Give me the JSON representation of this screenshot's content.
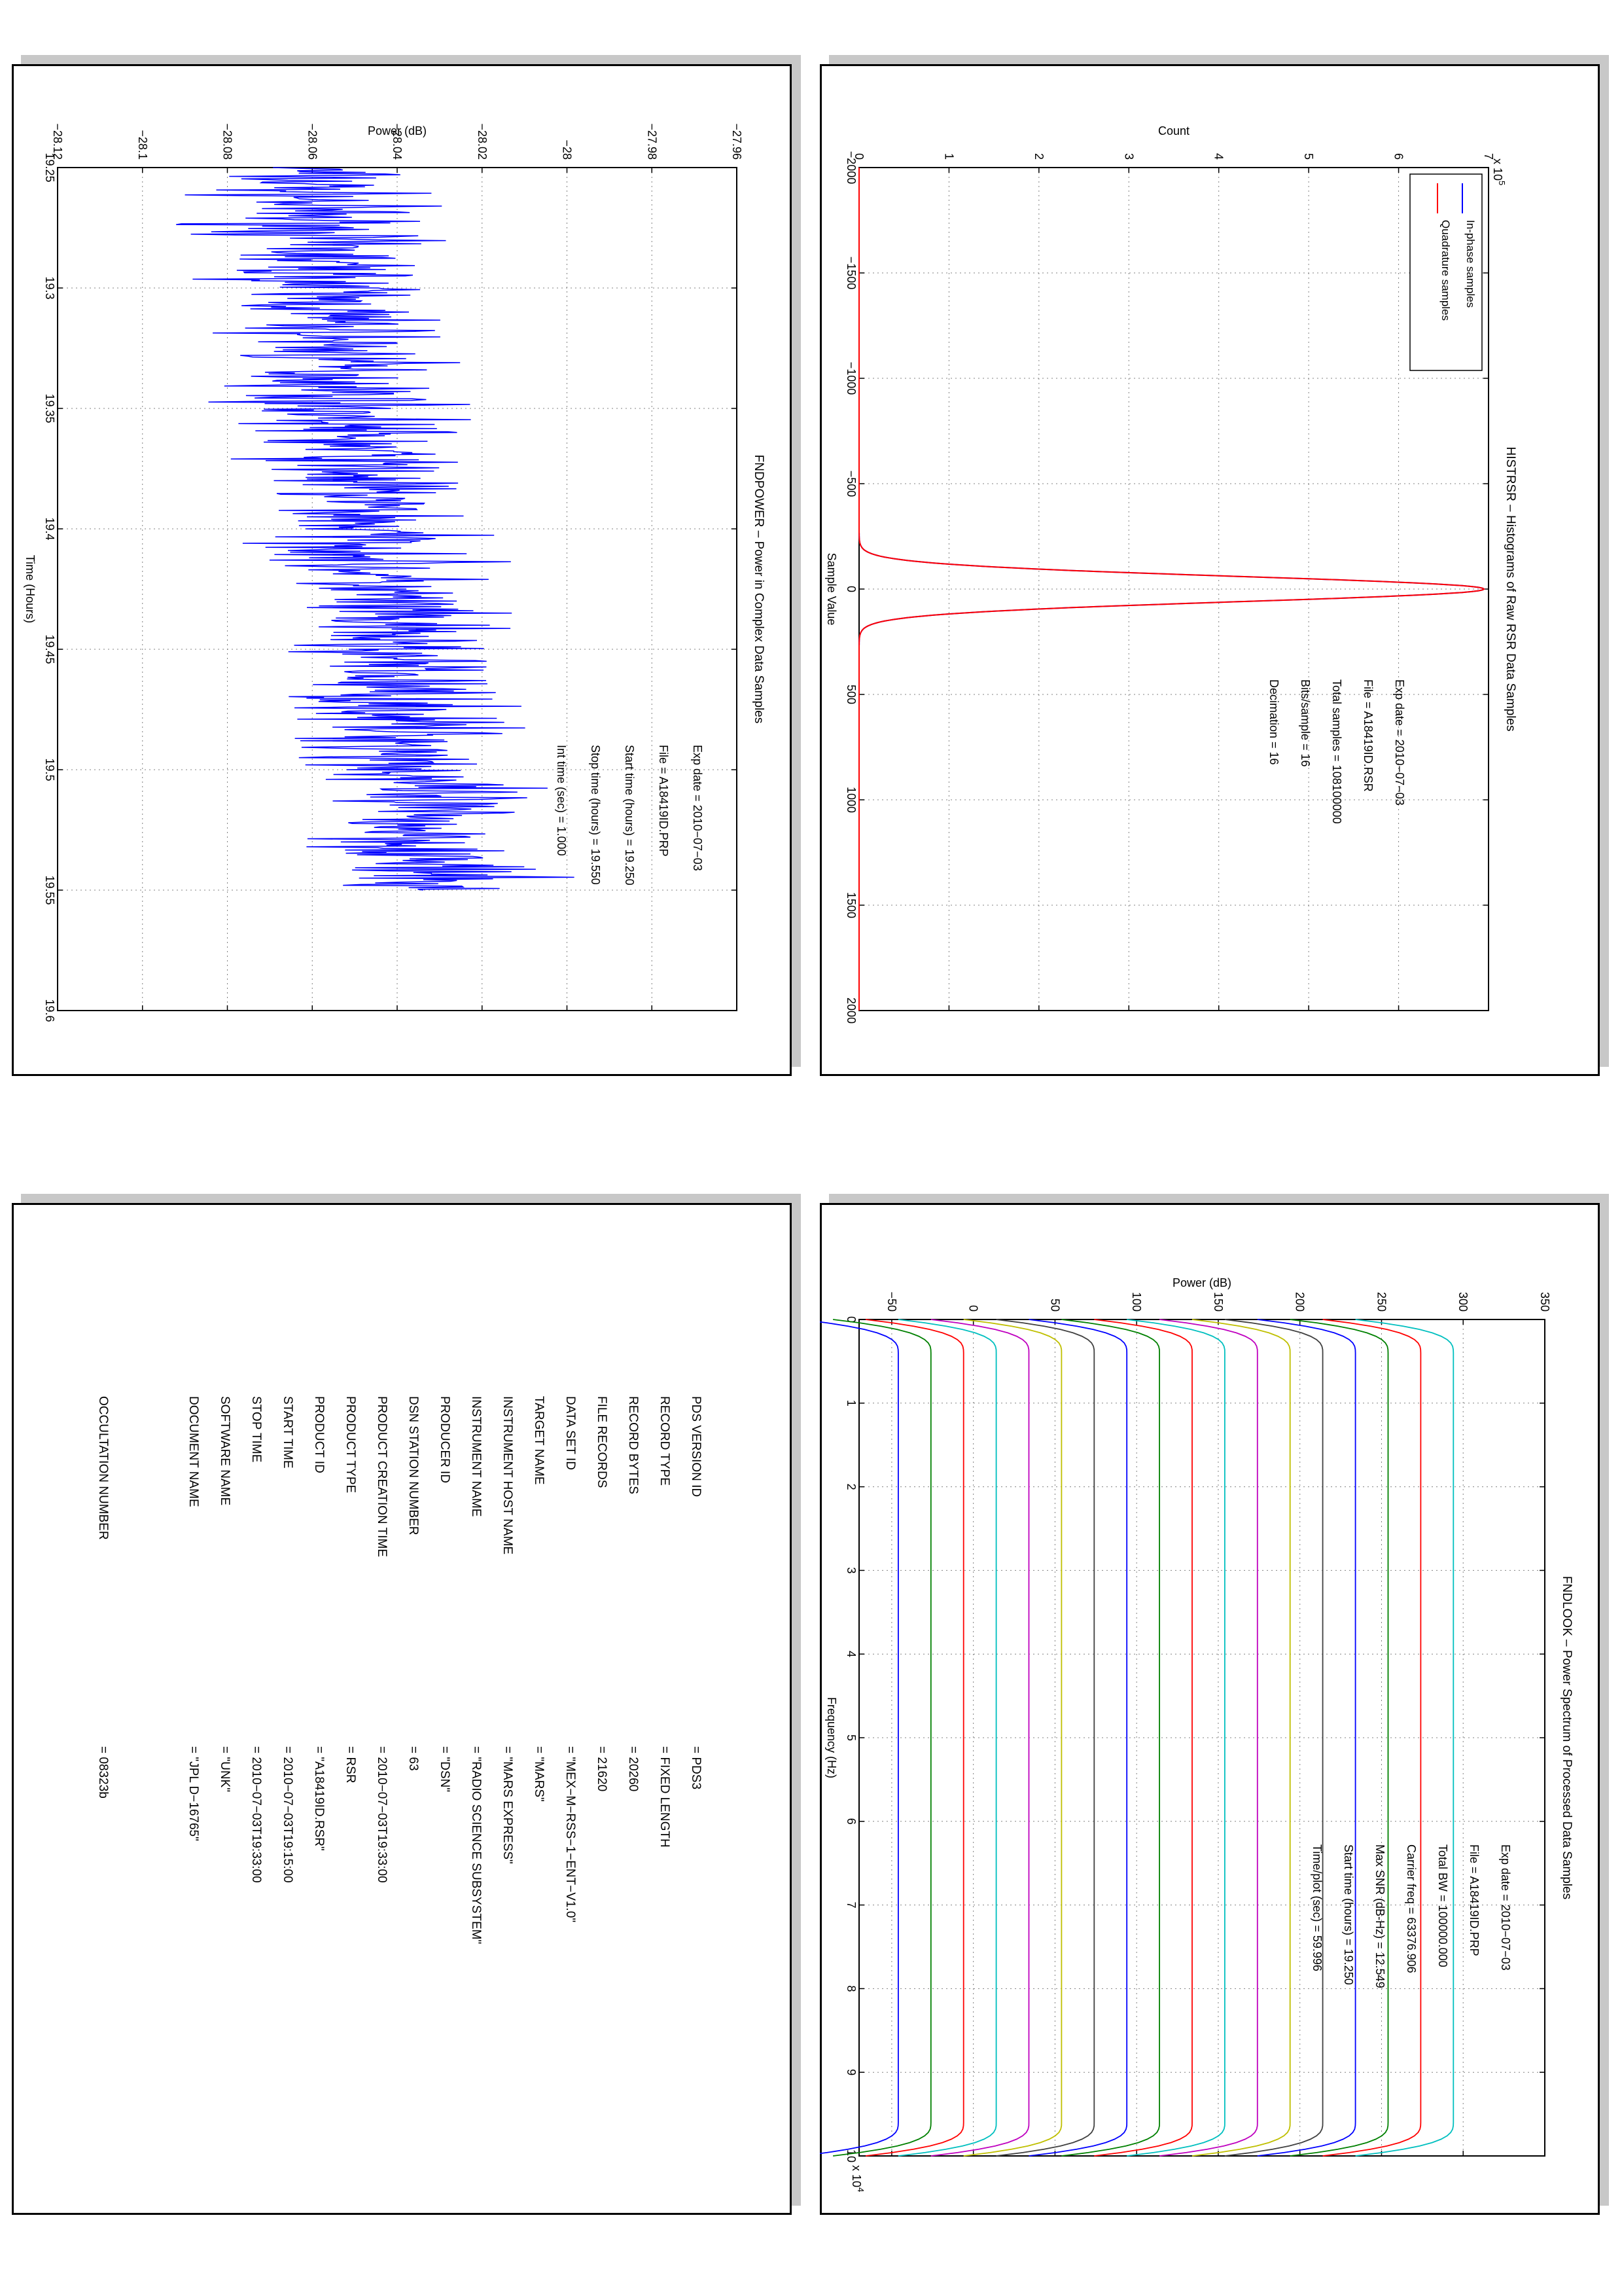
{
  "chart_data": [
    {
      "id": "histrsr",
      "type": "line",
      "title": "HISTRSR – Histograms of Raw RSR Data Samples",
      "xlabel": "Sample Value",
      "ylabel": "Count",
      "y_exponent": "x 10",
      "y_exponent_power": "5",
      "xlim": [
        -2000,
        2000
      ],
      "ylim": [
        0,
        7
      ],
      "xticks": [
        "−2000",
        "−1500",
        "−1000",
        "−500",
        "0",
        "500",
        "1000",
        "1500",
        "2000"
      ],
      "yticks": [
        "0",
        "1",
        "2",
        "3",
        "4",
        "5",
        "6",
        "7"
      ],
      "grid": true,
      "legend_position": "top-right",
      "series": [
        {
          "name": "In-phase samples",
          "color": "#0000ff",
          "peak": 6.95,
          "center": 0,
          "sigma": 60
        },
        {
          "name": "Quadrature samples",
          "color": "#ff0000",
          "peak": 6.95,
          "center": 0,
          "sigma": 60
        }
      ],
      "annotations": [
        "Exp date = 2010−07−03",
        "File = A18419ID.RSR",
        "Total samples =  108100000",
        "Bits/sample    =      16",
        "Decimation     =      16"
      ]
    },
    {
      "id": "fndpower",
      "type": "line",
      "title": "FNDPOWER – Power in Complex Data Samples",
      "xlabel": "Time (Hours)",
      "ylabel": "Power (dB)",
      "xlim": [
        19.25,
        19.6
      ],
      "ylim": [
        -28.12,
        -27.96
      ],
      "xticks": [
        "19.25",
        "19.3",
        "19.35",
        "19.4",
        "19.45",
        "19.5",
        "19.55",
        "19.6"
      ],
      "yticks": [
        "−28.12",
        "−28.1",
        "−28.08",
        "−28.06",
        "−28.04",
        "−28.02",
        "−28",
        "−27.98",
        "−27.96"
      ],
      "grid": true,
      "series": [
        {
          "color": "#0000ff",
          "x_start": 19.25,
          "x_end": 19.55,
          "y_start": -28.062,
          "y_end": -28.032,
          "noise": 0.025
        }
      ],
      "annotations": [
        "Exp date = 2010−07−03",
        "File = A18419ID.PRP",
        "Start time (hours) = 19.250",
        "Stop time (hours)  = 19.550",
        "Int time (sec) =     1.000"
      ]
    },
    {
      "id": "fndlook",
      "type": "line",
      "title": "FNDLOOK – Power Spectrum of Processed Data Samples",
      "xlabel": "Frequency (Hz)",
      "ylabel": "Power (dB)",
      "x_exponent": "x 10",
      "x_exponent_power": "4",
      "xlim": [
        0,
        100000
      ],
      "ylim": [
        -70,
        350
      ],
      "xticks": [
        "0",
        "1",
        "2",
        "3",
        "4",
        "5",
        "6",
        "7",
        "8",
        "9",
        "10"
      ],
      "yticks": [
        "−50",
        "0",
        "50",
        "100",
        "150",
        "200",
        "250",
        "300",
        "350"
      ],
      "grid": true,
      "series": [
        {
          "color": "#00bfbf",
          "level": 274
        },
        {
          "color": "#ff0000",
          "level": 254
        },
        {
          "color": "#008000",
          "level": 234
        },
        {
          "color": "#0000ff",
          "level": 214
        },
        {
          "color": "#404040",
          "level": 194
        },
        {
          "color": "#bfbf00",
          "level": 174
        },
        {
          "color": "#bf00bf",
          "level": 154
        },
        {
          "color": "#00bfbf",
          "level": 134
        },
        {
          "color": "#ff0000",
          "level": 114
        },
        {
          "color": "#008000",
          "level": 94
        },
        {
          "color": "#0000ff",
          "level": 74
        },
        {
          "color": "#404040",
          "level": 54
        },
        {
          "color": "#bfbf00",
          "level": 34
        },
        {
          "color": "#bf00bf",
          "level": 14
        },
        {
          "color": "#00bfbf",
          "level": -6
        },
        {
          "color": "#ff0000",
          "level": -26
        },
        {
          "color": "#008000",
          "level": -46
        },
        {
          "color": "#0000ff",
          "level": -66
        }
      ],
      "annotations": [
        "Exp date = 2010−07−03",
        "File = A18419ID.PRP",
        "Total BW =     100000.000",
        "Carrier freq =    63376.906",
        "Max SNR (dB-Hz) =     12.549",
        "Start time (hours) =   19.250",
        "Time/plot (sec) =     59.996"
      ]
    }
  ],
  "pds_label": [
    {
      "key": "PDS VERSION ID",
      "value": "=  PDS3"
    },
    {
      "key": "RECORD TYPE",
      "value": "=  FIXED LENGTH"
    },
    {
      "key": "RECORD BYTES",
      "value": "=  20260"
    },
    {
      "key": "FILE RECORDS",
      "value": "=  21620"
    },
    {
      "key": "DATA SET ID",
      "value": "=  \"MEX−M−RSS−1−ENT−V1.0\""
    },
    {
      "key": "TARGET NAME",
      "value": "=  \"MARS\""
    },
    {
      "key": "INSTRUMENT HOST NAME",
      "value": "=  \"MARS EXPRESS\""
    },
    {
      "key": "INSTRUMENT NAME",
      "value": "=  \"RADIO SCIENCE SUBSYSTEM\""
    },
    {
      "key": "PRODUCER ID",
      "value": "=  \"DSN\""
    },
    {
      "key": "DSN STATION NUMBER",
      "value": "=  63"
    },
    {
      "key": "PRODUCT CREATION TIME",
      "value": "=  2010−07−03T19:33:00"
    },
    {
      "key": "PRODUCT TYPE",
      "value": "=  RSR"
    },
    {
      "key": "PRODUCT ID",
      "value": "=  \"A18419ID.RSR\""
    },
    {
      "key": "START TIME",
      "value": "=  2010−07−03T19:15:00"
    },
    {
      "key": "STOP TIME",
      "value": "=  2010−07−03T19:33:00"
    },
    {
      "key": "SOFTWARE NAME",
      "value": "=  \"UNK\""
    },
    {
      "key": "DOCUMENT NAME",
      "value": "=  \"JPL D−16765\""
    },
    {
      "key": "OCCULTATION NUMBER",
      "value": "=  08323b",
      "gap": true
    }
  ]
}
